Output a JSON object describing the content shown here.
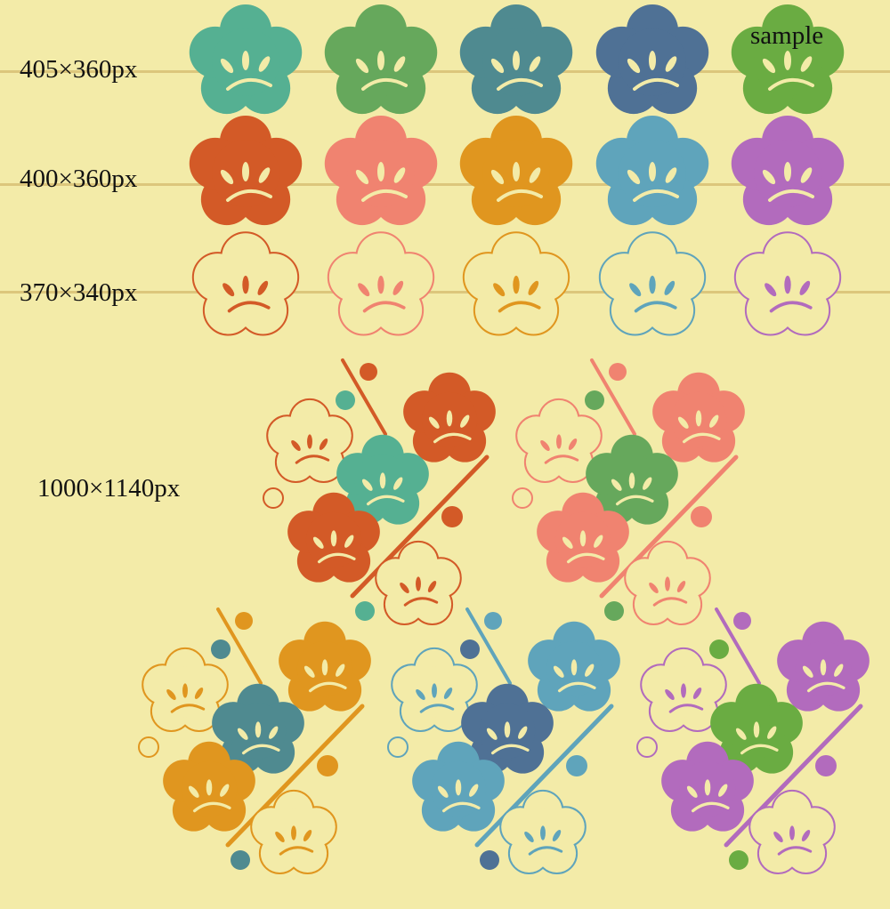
{
  "background": "#f3eba8",
  "guide_color": "#dcc67c",
  "sample_label": "sample",
  "rows": [
    {
      "label": "405×360px",
      "style": "filled",
      "colors": [
        "#55b092",
        "#66a85c",
        "#4f8a90",
        "#4f7195",
        "#6aac42"
      ]
    },
    {
      "label": "400×360px",
      "style": "filled",
      "colors": [
        "#d35a27",
        "#f08370",
        "#e0961f",
        "#5fa4bb",
        "#b26bbd"
      ]
    },
    {
      "label": "370×340px",
      "style": "outline",
      "colors": [
        "#d35a27",
        "#f08370",
        "#e0961f",
        "#5fa4bb",
        "#b26bbd"
      ]
    }
  ],
  "pattern": {
    "label": "1000×1140px",
    "tiles": [
      {
        "main": "#d35a27",
        "accent": "#55b092"
      },
      {
        "main": "#f08370",
        "accent": "#66a85c"
      },
      {
        "main": "#e0961f",
        "accent": "#4f8a90"
      },
      {
        "main": "#5fa4bb",
        "accent": "#4f7195"
      },
      {
        "main": "#b26bbd",
        "accent": "#6aac42"
      }
    ]
  }
}
